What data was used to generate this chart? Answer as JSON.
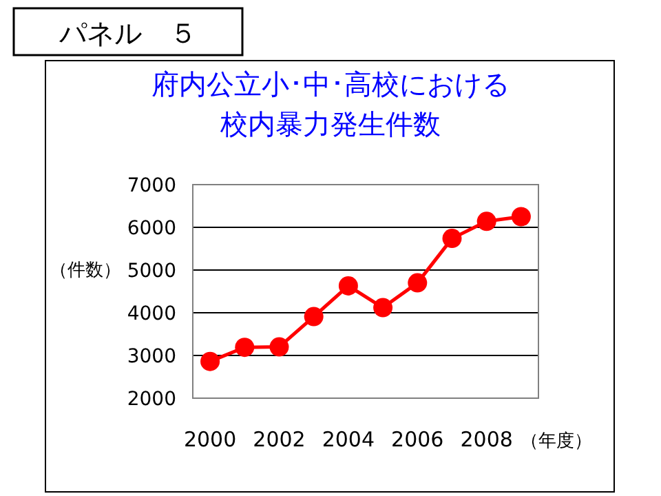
{
  "chart_data": {
    "type": "line",
    "title": "府内公立小･中･高校における校内暴力発生件数",
    "xlabel": "（年度）",
    "ylabel": "（件数）",
    "annotations": [
      "パネル　５"
    ],
    "x": [
      2000,
      2001,
      2002,
      2003,
      2004,
      2005,
      2006,
      2007,
      2008,
      2009
    ],
    "series": [
      {
        "color": "#ff0000",
        "values": [
          2860,
          3190,
          3200,
          3910,
          4630,
          4120,
          4700,
          5740,
          6140,
          6250
        ]
      }
    ],
    "xlim": [
      1999.5,
      2009.5
    ],
    "xticks": [
      2000,
      2002,
      2004,
      2006,
      2008
    ],
    "ylim": [
      2000,
      7000
    ],
    "yticks": [
      2000,
      3000,
      4000,
      5000,
      6000,
      7000
    ],
    "grid": "y",
    "marker": "circle",
    "line_style": "solid"
  }
}
